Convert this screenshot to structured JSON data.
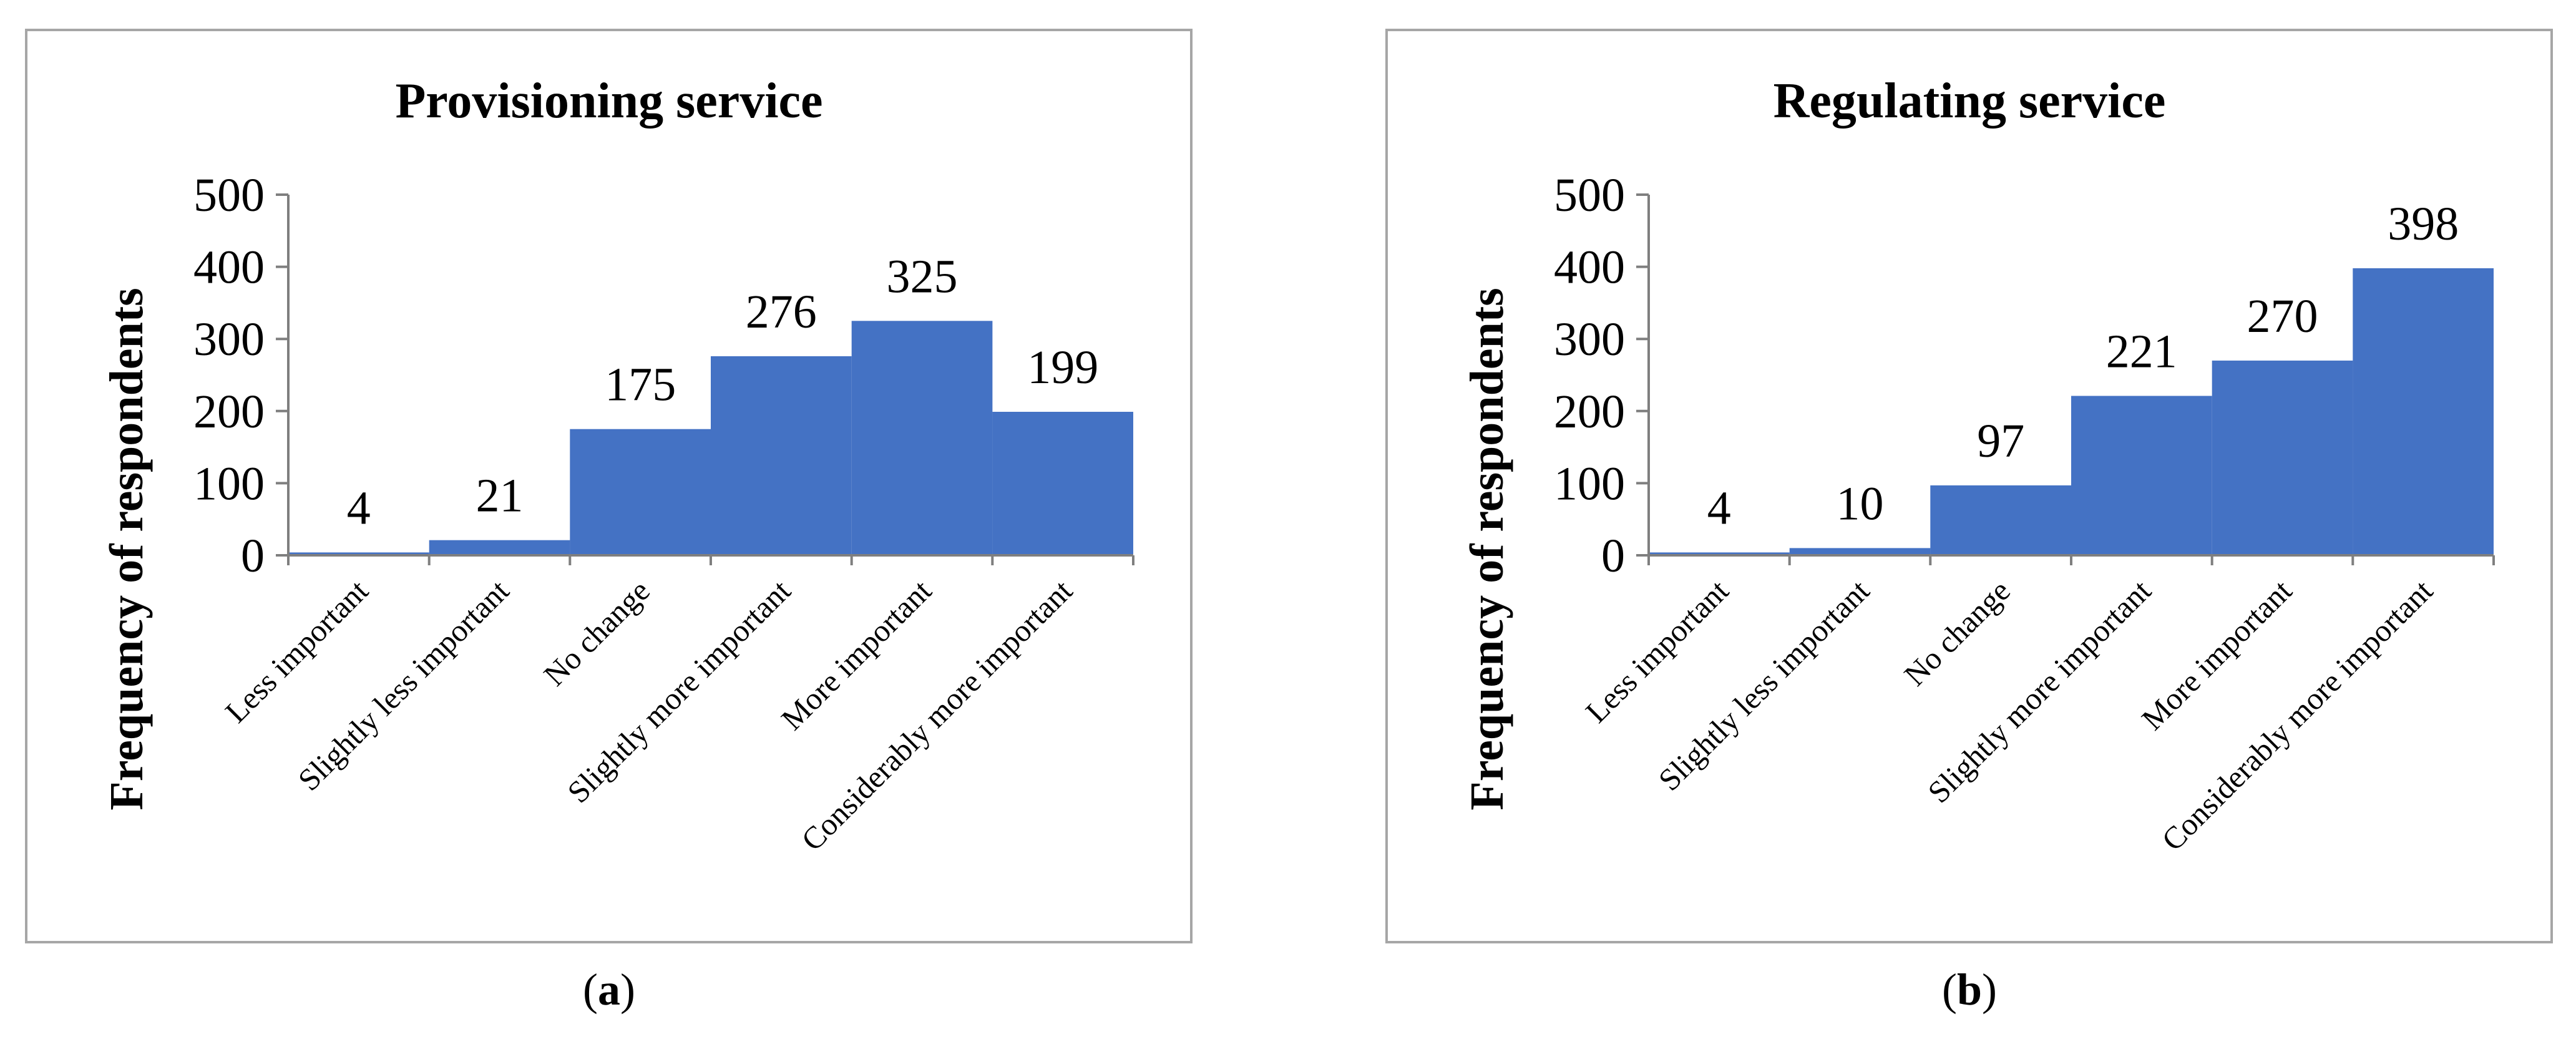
{
  "bar_color": "#4472C4",
  "panels": [
    {
      "caption_open": "(",
      "caption_letter": "a",
      "caption_close": ")"
    },
    {
      "caption_open": "(",
      "caption_letter": "b",
      "caption_close": ")"
    }
  ],
  "chart_data": [
    {
      "type": "bar",
      "title": "Provisioning service",
      "ylabel": "Frequency of respondents",
      "xlabel": "",
      "categories": [
        "Less important",
        "Slightly less important",
        "No change",
        "Slightly more important",
        "More important",
        "Considerably more important"
      ],
      "values": [
        4,
        21,
        175,
        276,
        325,
        199
      ],
      "yticks": [
        0,
        100,
        200,
        300,
        400,
        500
      ],
      "ylim": [
        0,
        500
      ],
      "grid": false,
      "legend": "none"
    },
    {
      "type": "bar",
      "title": "Regulating service",
      "ylabel": "Frequency of respondents",
      "xlabel": "",
      "categories": [
        "Less important",
        "Slightly less important",
        "No change",
        "Slightly more important",
        "More important",
        "Considerably more important"
      ],
      "values": [
        4,
        10,
        97,
        221,
        270,
        398
      ],
      "yticks": [
        0,
        100,
        200,
        300,
        400,
        500
      ],
      "ylim": [
        0,
        500
      ],
      "grid": false,
      "legend": "none"
    }
  ]
}
